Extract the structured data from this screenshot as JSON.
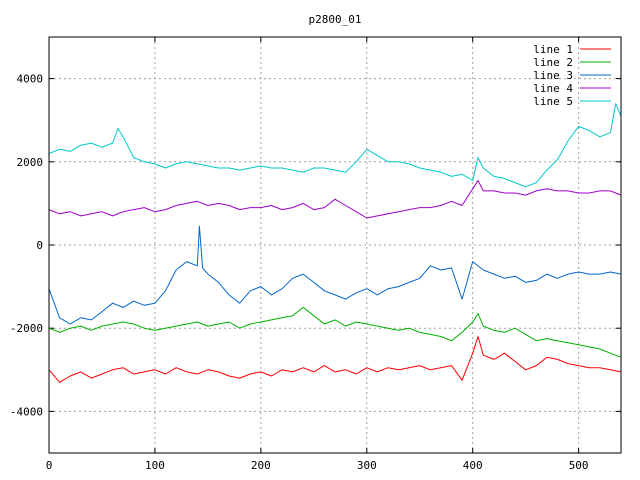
{
  "chart_data": {
    "type": "line",
    "title": "p2800_01",
    "xlabel": "",
    "ylabel": "",
    "xlim": [
      0,
      540
    ],
    "ylim": [
      -5000,
      5000
    ],
    "x_ticks": [
      0,
      100,
      200,
      300,
      400,
      500
    ],
    "y_ticks": [
      -4000,
      -2000,
      0,
      2000,
      4000
    ],
    "grid": true,
    "legend_position": "top-right",
    "series": [
      {
        "name": "line 1",
        "color": "#ff0000",
        "x": [
          0,
          10,
          20,
          30,
          40,
          50,
          60,
          70,
          80,
          90,
          100,
          110,
          120,
          130,
          140,
          150,
          160,
          170,
          180,
          190,
          200,
          210,
          220,
          230,
          240,
          250,
          260,
          270,
          280,
          290,
          300,
          310,
          320,
          330,
          340,
          350,
          360,
          370,
          380,
          390,
          400,
          405,
          410,
          420,
          430,
          440,
          450,
          460,
          470,
          480,
          490,
          500,
          510,
          520,
          530,
          540
        ],
        "values": [
          -3000,
          -3300,
          -3150,
          -3050,
          -3200,
          -3100,
          -3000,
          -2950,
          -3100,
          -3050,
          -3000,
          -3100,
          -2950,
          -3050,
          -3100,
          -3000,
          -3050,
          -3150,
          -3200,
          -3100,
          -3050,
          -3150,
          -3000,
          -3050,
          -2950,
          -3050,
          -2900,
          -3050,
          -3000,
          -3100,
          -2950,
          -3050,
          -2950,
          -3000,
          -2950,
          -2900,
          -3000,
          -2950,
          -2900,
          -3250,
          -2600,
          -2200,
          -2650,
          -2750,
          -2600,
          -2800,
          -3000,
          -2900,
          -2700,
          -2750,
          -2850,
          -2900,
          -2950,
          -2950,
          -3000,
          -3050
        ]
      },
      {
        "name": "line 2",
        "color": "#00b000",
        "x": [
          0,
          10,
          20,
          30,
          40,
          50,
          60,
          70,
          80,
          90,
          100,
          110,
          120,
          130,
          140,
          150,
          160,
          170,
          180,
          190,
          200,
          210,
          220,
          230,
          240,
          250,
          260,
          270,
          280,
          290,
          300,
          310,
          320,
          330,
          340,
          350,
          360,
          370,
          380,
          390,
          400,
          405,
          410,
          420,
          430,
          440,
          450,
          460,
          470,
          480,
          490,
          500,
          510,
          520,
          530,
          540
        ],
        "values": [
          -2000,
          -2100,
          -2000,
          -1950,
          -2050,
          -1950,
          -1900,
          -1850,
          -1900,
          -2000,
          -2050,
          -2000,
          -1950,
          -1900,
          -1850,
          -1950,
          -1900,
          -1850,
          -2000,
          -1900,
          -1850,
          -1800,
          -1750,
          -1700,
          -1500,
          -1700,
          -1900,
          -1800,
          -1950,
          -1850,
          -1900,
          -1950,
          -2000,
          -2050,
          -2000,
          -2100,
          -2150,
          -2200,
          -2300,
          -2100,
          -1850,
          -1650,
          -1950,
          -2050,
          -2100,
          -2000,
          -2150,
          -2300,
          -2250,
          -2300,
          -2350,
          -2400,
          -2450,
          -2500,
          -2600,
          -2700
        ]
      },
      {
        "name": "line 3",
        "color": "#0066cc",
        "x": [
          0,
          10,
          20,
          30,
          40,
          50,
          60,
          70,
          80,
          90,
          100,
          110,
          120,
          130,
          140,
          142,
          145,
          150,
          160,
          170,
          180,
          190,
          200,
          210,
          220,
          230,
          240,
          250,
          260,
          270,
          280,
          290,
          300,
          310,
          320,
          330,
          340,
          350,
          360,
          370,
          380,
          390,
          400,
          410,
          420,
          430,
          440,
          450,
          460,
          470,
          480,
          490,
          500,
          510,
          520,
          530,
          540
        ],
        "values": [
          -1050,
          -1750,
          -1900,
          -1750,
          -1800,
          -1600,
          -1400,
          -1500,
          -1350,
          -1450,
          -1400,
          -1100,
          -600,
          -400,
          -500,
          450,
          -550,
          -700,
          -900,
          -1200,
          -1400,
          -1100,
          -1000,
          -1200,
          -1050,
          -800,
          -700,
          -900,
          -1100,
          -1200,
          -1300,
          -1150,
          -1050,
          -1200,
          -1050,
          -1000,
          -900,
          -800,
          -500,
          -600,
          -550,
          -1300,
          -400,
          -600,
          -700,
          -800,
          -750,
          -900,
          -850,
          -700,
          -800,
          -700,
          -650,
          -700,
          -700,
          -650,
          -700
        ]
      },
      {
        "name": "line 4",
        "color": "#a000c8",
        "x": [
          0,
          10,
          20,
          30,
          40,
          50,
          60,
          70,
          80,
          90,
          100,
          110,
          120,
          130,
          140,
          150,
          160,
          170,
          180,
          190,
          200,
          210,
          220,
          230,
          240,
          250,
          260,
          270,
          280,
          290,
          300,
          310,
          320,
          330,
          340,
          350,
          360,
          370,
          380,
          390,
          400,
          405,
          410,
          420,
          430,
          440,
          450,
          460,
          470,
          480,
          490,
          500,
          510,
          520,
          530,
          540
        ],
        "values": [
          850,
          750,
          800,
          700,
          750,
          800,
          700,
          800,
          850,
          900,
          800,
          850,
          950,
          1000,
          1050,
          950,
          1000,
          950,
          850,
          900,
          900,
          950,
          850,
          900,
          1000,
          850,
          900,
          1100,
          950,
          800,
          650,
          700,
          750,
          800,
          850,
          900,
          900,
          950,
          1050,
          950,
          1350,
          1550,
          1300,
          1300,
          1250,
          1250,
          1200,
          1300,
          1350,
          1300,
          1300,
          1250,
          1250,
          1300,
          1300,
          1200
        ]
      },
      {
        "name": "line 5",
        "color": "#00c8c8",
        "x": [
          0,
          10,
          20,
          30,
          40,
          50,
          60,
          65,
          70,
          80,
          90,
          100,
          110,
          120,
          130,
          140,
          150,
          160,
          170,
          180,
          190,
          200,
          210,
          220,
          230,
          240,
          250,
          260,
          270,
          280,
          290,
          300,
          310,
          320,
          330,
          340,
          350,
          360,
          370,
          380,
          390,
          400,
          405,
          410,
          420,
          430,
          440,
          450,
          460,
          470,
          480,
          490,
          500,
          510,
          520,
          530,
          535,
          540
        ],
        "values": [
          2200,
          2300,
          2250,
          2400,
          2450,
          2350,
          2450,
          2800,
          2600,
          2100,
          2000,
          1950,
          1850,
          1950,
          2000,
          1950,
          1900,
          1850,
          1850,
          1800,
          1850,
          1900,
          1850,
          1850,
          1800,
          1750,
          1850,
          1850,
          1800,
          1750,
          2000,
          2300,
          2150,
          2000,
          2000,
          1950,
          1850,
          1800,
          1750,
          1650,
          1700,
          1550,
          2100,
          1850,
          1650,
          1600,
          1500,
          1400,
          1500,
          1800,
          2050,
          2500,
          2850,
          2750,
          2600,
          2700,
          3400,
          3100
        ]
      }
    ]
  }
}
